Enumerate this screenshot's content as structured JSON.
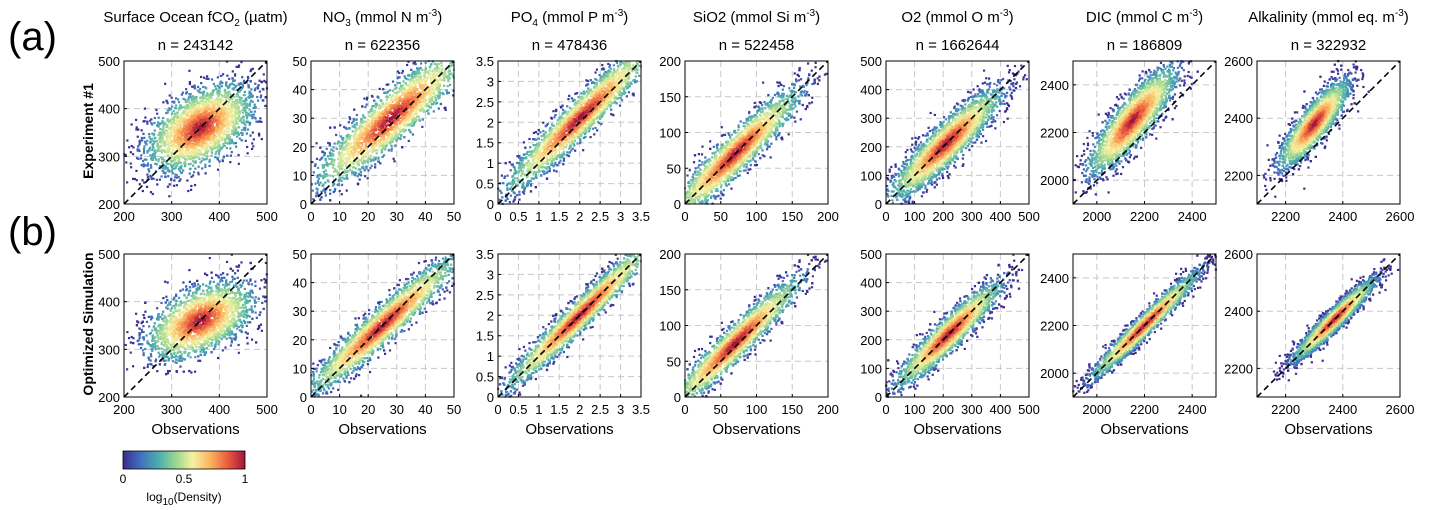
{
  "panel_labels": [
    "(a)",
    "(b)"
  ],
  "row_labels": [
    "Experiment #1",
    "Optimized Simulation"
  ],
  "colorbar": {
    "label": "log10(Density)",
    "ticks": [
      "0",
      "0.5",
      "1"
    ],
    "range": [
      0,
      1
    ],
    "colors": [
      "#3b2b8f",
      "#3f6fbf",
      "#4fb0ae",
      "#a6d98f",
      "#f5f2a2",
      "#fbb15d",
      "#e8553c",
      "#a0153e"
    ]
  },
  "chart_data": [
    {
      "type": "heatmap",
      "title": "Surface Ocean fCO2 (µatm)",
      "n": "n = 243142",
      "lim": [
        200,
        500
      ],
      "ticks": [
        200,
        300,
        400,
        500
      ],
      "tick_labels": [
        "200",
        "300",
        "400",
        "500"
      ],
      "one_to_one_line": true,
      "xlabel": "Observations",
      "rows": {
        "experiment": {
          "center": [
            360,
            360
          ],
          "spread": [
            55,
            45
          ],
          "corr": 0.5,
          "bias": 0
        },
        "optimized": {
          "center": [
            360,
            360
          ],
          "spread": [
            55,
            40
          ],
          "corr": 0.5,
          "bias": 0
        }
      }
    },
    {
      "type": "heatmap",
      "title": "NO3 (mmol N m-3)",
      "n": "n = 622356",
      "lim": [
        0,
        50
      ],
      "ticks": [
        0,
        10,
        20,
        30,
        40,
        50
      ],
      "tick_labels": [
        "0",
        "10",
        "20",
        "30",
        "40",
        "50"
      ],
      "one_to_one_line": true,
      "xlabel": "Observations",
      "rows": {
        "experiment": {
          "center": [
            28,
            30
          ],
          "spread": [
            13,
            12
          ],
          "corr": 0.9,
          "bias": 3
        },
        "optimized": {
          "center": [
            25,
            25
          ],
          "spread": [
            13,
            12
          ],
          "corr": 0.95,
          "bias": 0
        }
      }
    },
    {
      "type": "heatmap",
      "title": "PO4 (mmol P m-3)",
      "n": "n = 478436",
      "lim": [
        0,
        3.5
      ],
      "ticks": [
        0,
        0.5,
        1,
        1.5,
        2,
        2.5,
        3,
        3.5
      ],
      "tick_labels": [
        "0",
        "0.5",
        "1",
        "1.5",
        "2",
        "2.5",
        "3",
        "3.5"
      ],
      "one_to_one_line": true,
      "xlabel": "Observations",
      "rows": {
        "experiment": {
          "center": [
            2.0,
            2.1
          ],
          "spread": [
            0.9,
            0.9
          ],
          "corr": 0.95,
          "bias": 0.1
        },
        "optimized": {
          "center": [
            2.0,
            2.0
          ],
          "spread": [
            0.9,
            0.9
          ],
          "corr": 0.97,
          "bias": 0
        }
      }
    },
    {
      "type": "heatmap",
      "title": "SiO2 (mmol Si m-3)",
      "n": "n = 522458",
      "lim": [
        0,
        200
      ],
      "ticks": [
        0,
        50,
        100,
        150,
        200
      ],
      "tick_labels": [
        "0",
        "50",
        "100",
        "150",
        "200"
      ],
      "one_to_one_line": true,
      "xlabel": "Observations",
      "rows": {
        "experiment": {
          "center": [
            70,
            70
          ],
          "spread": [
            45,
            45
          ],
          "corr": 0.93,
          "bias": 0
        },
        "optimized": {
          "center": [
            70,
            75
          ],
          "spread": [
            45,
            45
          ],
          "corr": 0.95,
          "bias": 5
        }
      }
    },
    {
      "type": "heatmap",
      "title": "O2 (mmol O m-3)",
      "n": "n = 1662644",
      "lim": [
        0,
        500
      ],
      "ticks": [
        0,
        100,
        200,
        300,
        400,
        500
      ],
      "tick_labels": [
        "0",
        "100",
        "200",
        "300",
        "400",
        "500"
      ],
      "one_to_one_line": true,
      "xlabel": "Observations",
      "rows": {
        "experiment": {
          "center": [
            210,
            210
          ],
          "spread": [
            95,
            95
          ],
          "corr": 0.9,
          "bias": 0
        },
        "optimized": {
          "center": [
            220,
            220
          ],
          "spread": [
            90,
            90
          ],
          "corr": 0.93,
          "bias": 0
        }
      }
    },
    {
      "type": "heatmap",
      "title": "DIC (mmol C m-3)",
      "n": "n = 186809",
      "lim": [
        1900,
        2500
      ],
      "ticks": [
        2000,
        2200,
        2400
      ],
      "tick_labels": [
        "2000",
        "2200",
        "2400"
      ],
      "one_to_one_line": true,
      "xlabel": "Observations",
      "rows": {
        "experiment": {
          "center": [
            2150,
            2250
          ],
          "spread": [
            90,
            110
          ],
          "corr": 0.85,
          "bias": 100
        },
        "optimized": {
          "center": [
            2200,
            2200
          ],
          "spread": [
            110,
            110
          ],
          "corr": 0.97,
          "bias": 0
        }
      }
    },
    {
      "type": "heatmap",
      "title": "Alkalinity (mmol eq. m-3)",
      "n": "n = 322932",
      "lim": [
        2100,
        2600
      ],
      "ticks": [
        2200,
        2400,
        2600
      ],
      "tick_labels": [
        "2200",
        "2400",
        "2600"
      ],
      "one_to_one_line": true,
      "xlabel": "Observations",
      "rows": {
        "experiment": {
          "center": [
            2300,
            2380
          ],
          "spread": [
            60,
            75
          ],
          "corr": 0.85,
          "bias": 80
        },
        "optimized": {
          "center": [
            2370,
            2370
          ],
          "spread": [
            70,
            70
          ],
          "corr": 0.95,
          "bias": 0
        }
      }
    }
  ]
}
